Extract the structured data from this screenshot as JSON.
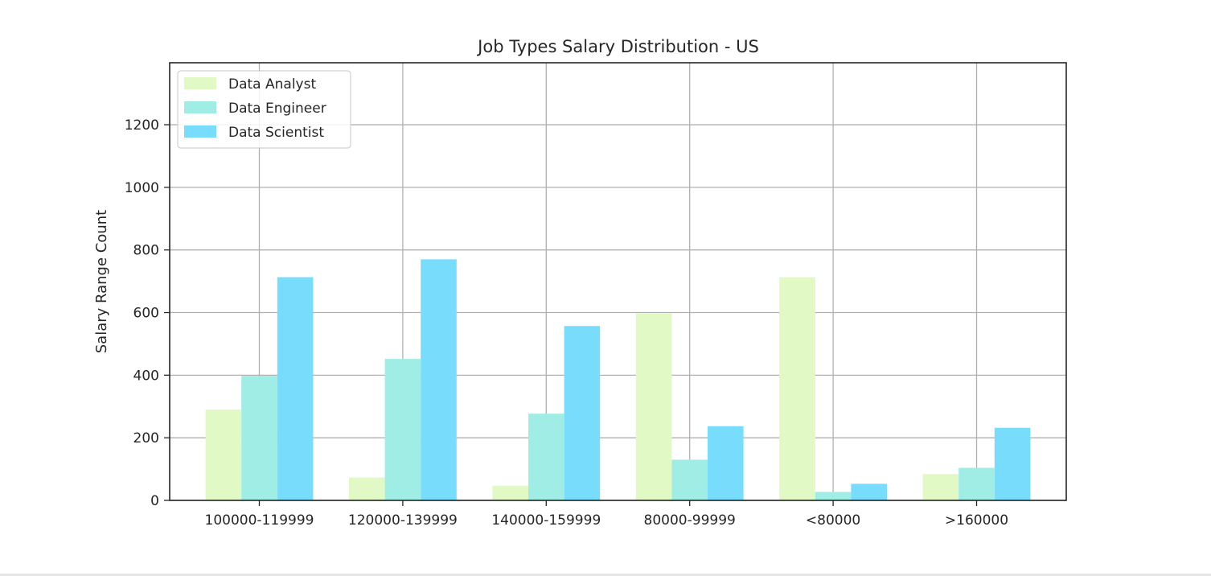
{
  "chart_data": {
    "type": "bar",
    "title": "Job Types Salary Distribution - US",
    "xlabel": "",
    "ylabel": "Salary Range Count",
    "categories": [
      "100000-119999",
      "120000-139999",
      "140000-159999",
      "80000-99999",
      "<80000",
      ">160000"
    ],
    "series": [
      {
        "name": "Data Analyst",
        "color": "#e0f9c5",
        "values": [
          290,
          73,
          47,
          597,
          713,
          84
        ]
      },
      {
        "name": "Data Engineer",
        "color": "#a0ede6",
        "values": [
          398,
          452,
          277,
          130,
          27,
          104
        ]
      },
      {
        "name": "Data Scientist",
        "color": "#78dcfc",
        "values": [
          713,
          770,
          557,
          237,
          53,
          232
        ]
      }
    ],
    "yticks": [
      0,
      200,
      400,
      600,
      800,
      1000,
      1200
    ],
    "ylim": [
      0,
      1398
    ],
    "grid": true,
    "legend_position": "top-left"
  }
}
